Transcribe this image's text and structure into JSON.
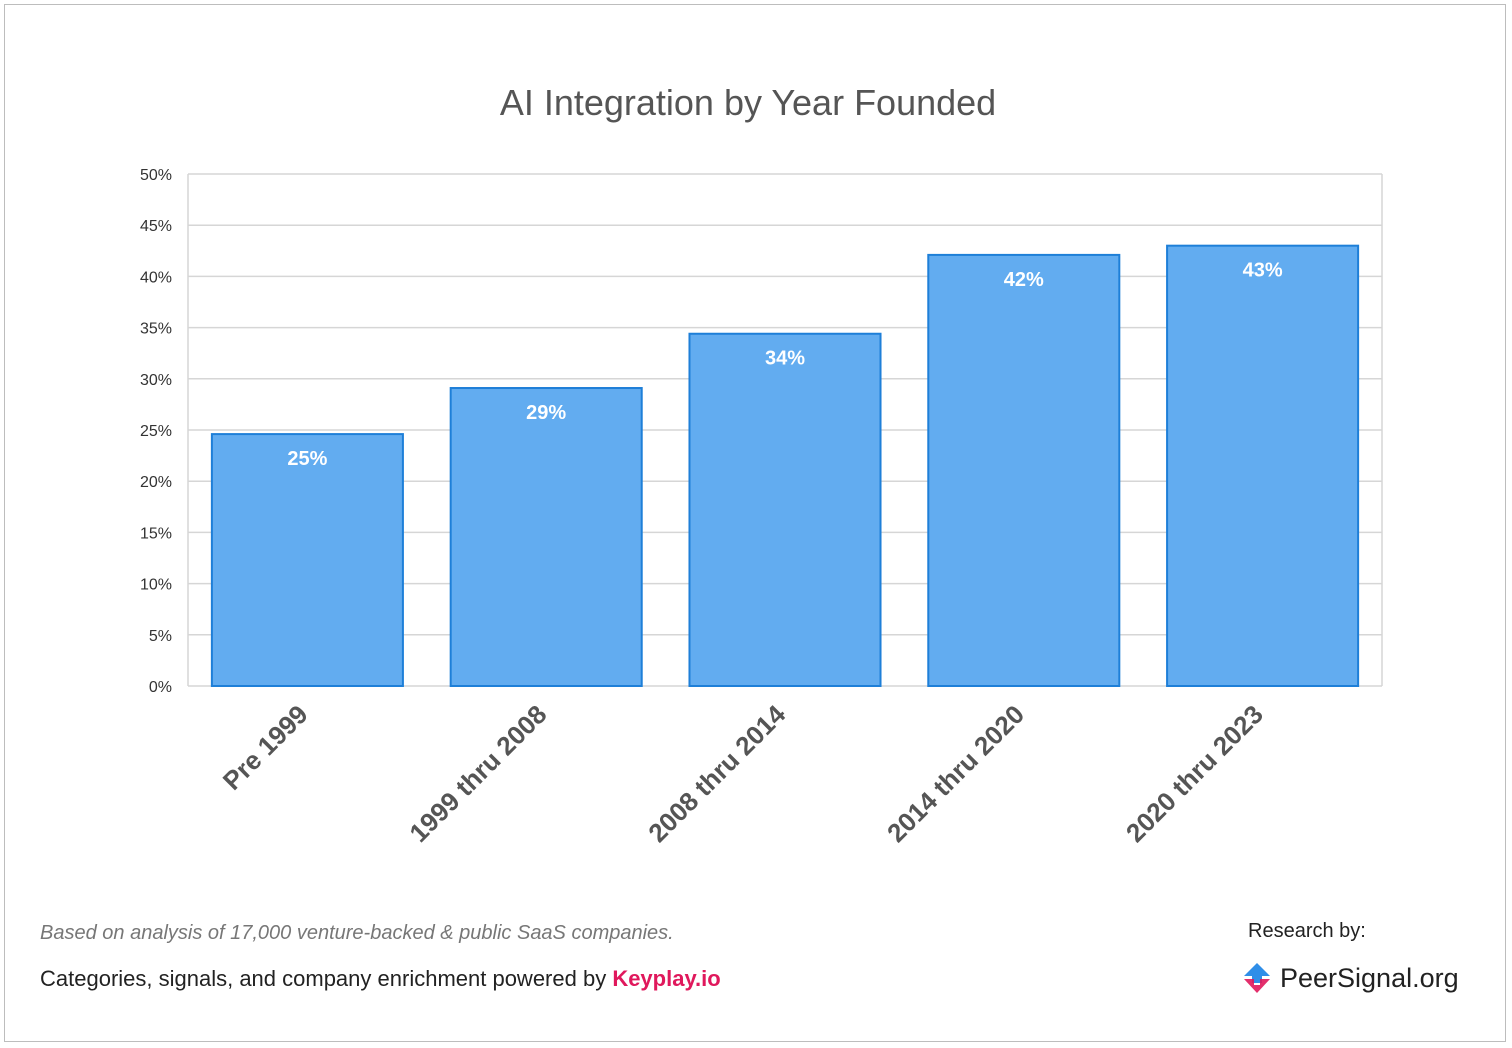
{
  "chart_data": {
    "type": "bar",
    "title": "AI Integration by Year Founded",
    "categories": [
      "Pre 1999",
      "1999 thru 2008",
      "2008 thru 2014",
      "2014 thru 2020",
      "2020 thru 2023"
    ],
    "values": [
      24.6,
      29.1,
      34.4,
      42.1,
      43.0
    ],
    "data_labels": [
      "25%",
      "29%",
      "34%",
      "42%",
      "43%"
    ],
    "ylim": [
      0,
      50
    ],
    "yticks": [
      "0%",
      "5%",
      "10%",
      "15%",
      "20%",
      "25%",
      "30%",
      "35%",
      "40%",
      "45%",
      "50%"
    ],
    "grid": true,
    "bar_color": "#62acf0",
    "bar_border_color": "#1e7fd8"
  },
  "footer": {
    "note": "Based on analysis of 17,000 venture-backed & public SaaS companies.",
    "credits_prefix": "Categories, signals, and company enrichment powered by ",
    "credits_brand": "Keyplay.io",
    "brand_color": "#e0185c",
    "research_label": "Research by:",
    "logo_text": "PeerSignal.org"
  }
}
